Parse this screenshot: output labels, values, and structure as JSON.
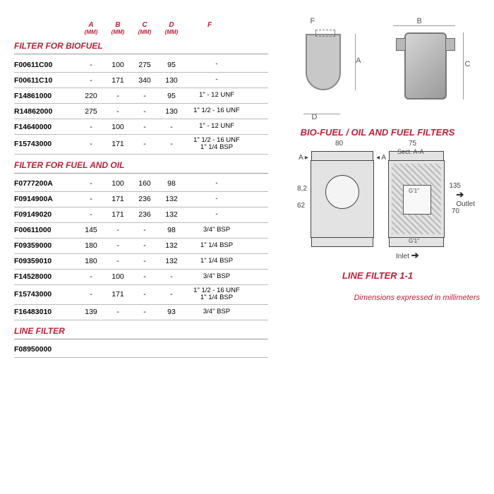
{
  "columns": [
    {
      "label": "A",
      "unit": "(MM)"
    },
    {
      "label": "B",
      "unit": "(MM)"
    },
    {
      "label": "C",
      "unit": "(MM)"
    },
    {
      "label": "D",
      "unit": "(MM)"
    },
    {
      "label": "F",
      "unit": ""
    }
  ],
  "sections": [
    {
      "title": "FILTER FOR BIOFUEL",
      "rows": [
        {
          "code": "F00611C00",
          "a": "-",
          "b": "100",
          "c": "275",
          "d": "95",
          "f": "-"
        },
        {
          "code": "F00611C10",
          "a": "-",
          "b": "171",
          "c": "340",
          "d": "130",
          "f": "-"
        },
        {
          "code": "F14861000",
          "a": "220",
          "b": "-",
          "c": "-",
          "d": "95",
          "f": "1\" - 12 UNF"
        },
        {
          "code": "R14862000",
          "a": "275",
          "b": "-",
          "c": "-",
          "d": "130",
          "f": "1\" 1/2 - 16 UNF"
        },
        {
          "code": "F14640000",
          "a": "-",
          "b": "100",
          "c": "-",
          "d": "-",
          "f": "1\" - 12 UNF"
        },
        {
          "code": "F15743000",
          "a": "-",
          "b": "171",
          "c": "-",
          "d": "-",
          "f": "1\" 1/2 - 16 UNF\n1\" 1/4 BSP"
        }
      ]
    },
    {
      "title": "FILTER FOR FUEL AND OIL",
      "rows": [
        {
          "code": "F0777200A",
          "a": "-",
          "b": "100",
          "c": "160",
          "d": "98",
          "f": "-"
        },
        {
          "code": "F0914900A",
          "a": "-",
          "b": "171",
          "c": "236",
          "d": "132",
          "f": "-"
        },
        {
          "code": "F09149020",
          "a": "-",
          "b": "171",
          "c": "236",
          "d": "132",
          "f": "-"
        },
        {
          "code": "F00611000",
          "a": "145",
          "b": "-",
          "c": "-",
          "d": "98",
          "f": "3/4\" BSP"
        },
        {
          "code": "F09359000",
          "a": "180",
          "b": "-",
          "c": "-",
          "d": "132",
          "f": "1\" 1/4 BSP"
        },
        {
          "code": "F09359010",
          "a": "180",
          "b": "-",
          "c": "-",
          "d": "132",
          "f": "1\" 1/4 BSP"
        },
        {
          "code": "F14528000",
          "a": "-",
          "b": "100",
          "c": "-",
          "d": "-",
          "f": "3/4\" BSP"
        },
        {
          "code": "F15743000",
          "a": "-",
          "b": "171",
          "c": "-",
          "d": "-",
          "f": "1\" 1/2 - 16 UNF\n1\" 1/4 BSP"
        },
        {
          "code": "F16483010",
          "a": "139",
          "b": "-",
          "c": "-",
          "d": "93",
          "f": "3/4\" BSP"
        }
      ]
    },
    {
      "title": "LINE FILTER",
      "rows": [
        {
          "code": "F08950000",
          "a": "",
          "b": "",
          "c": "",
          "d": "",
          "f": ""
        }
      ]
    }
  ],
  "fig1": {
    "caption": "BIO-FUEL / OIL AND FUEL FILTERS",
    "labels": {
      "F": "F",
      "A": "A",
      "D": "D",
      "B": "B",
      "C": "C"
    }
  },
  "fig2": {
    "caption": "LINE FILTER 1-1",
    "dims": {
      "w80": "80",
      "w75": "75",
      "h135": "135",
      "h70": "70",
      "d82": "8,2",
      "d62": "62"
    },
    "labels": {
      "sect": "Sect. A-A",
      "inlet": "Inlet",
      "outlet": "Outlet",
      "g1a": "G'1\"",
      "g1b": "G'1\"",
      "arrA": "A",
      "arrA2": "A"
    }
  },
  "footnote": "Dimensions expressed in millimeters"
}
